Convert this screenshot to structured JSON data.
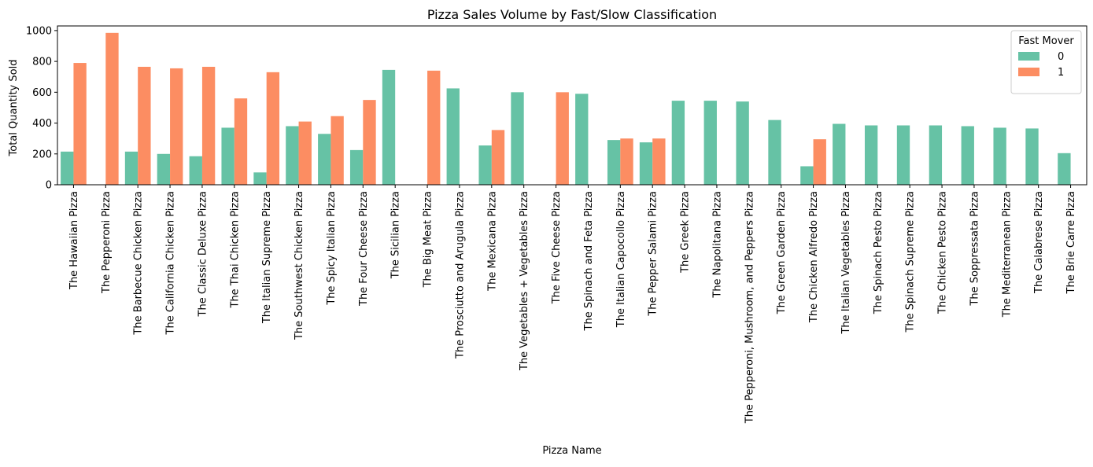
{
  "chart_data": {
    "type": "bar",
    "title": "Pizza Sales Volume by Fast/Slow Classification",
    "xlabel": "Pizza Name",
    "ylabel": "Total Quantity Sold",
    "ylim": [
      0,
      1030
    ],
    "yticks": [
      0,
      200,
      400,
      600,
      800,
      1000
    ],
    "grid": false,
    "legend": {
      "title": "Fast Mover",
      "placement": "top-right"
    },
    "categories": [
      "The Hawaiian Pizza",
      "The Pepperoni Pizza",
      "The Barbecue Chicken Pizza",
      "The California Chicken Pizza",
      "The Classic Deluxe Pizza",
      "The Thai Chicken Pizza",
      "The Italian Supreme Pizza",
      "The Southwest Chicken Pizza",
      "The Spicy Italian Pizza",
      "The Four Cheese Pizza",
      "The Sicilian Pizza",
      "The Big Meat Pizza",
      "The Prosciutto and Arugula Pizza",
      "The Mexicana Pizza",
      "The Vegetables + Vegetables Pizza",
      "The Five Cheese Pizza",
      "The Spinach and Feta Pizza",
      "The Italian Capocollo Pizza",
      "The Pepper Salami Pizza",
      "The Greek Pizza",
      "The Napolitana Pizza",
      "The Pepperoni, Mushroom, and Peppers Pizza",
      "The Green Garden Pizza",
      "The Chicken Alfredo Pizza",
      "The Italian Vegetables Pizza",
      "The Spinach Pesto Pizza",
      "The Spinach Supreme Pizza",
      "The Chicken Pesto Pizza",
      "The Soppressata Pizza",
      "The Mediterranean Pizza",
      "The Calabrese Pizza",
      "The Brie Carre Pizza"
    ],
    "series": [
      {
        "name": "0",
        "color": "#66c2a5",
        "values": [
          215,
          null,
          215,
          200,
          185,
          370,
          80,
          380,
          330,
          225,
          745,
          null,
          625,
          255,
          600,
          null,
          590,
          290,
          275,
          545,
          545,
          540,
          420,
          120,
          395,
          385,
          385,
          385,
          380,
          370,
          365,
          205
        ]
      },
      {
        "name": "1",
        "color": "#fc8d62",
        "values": [
          790,
          985,
          765,
          755,
          765,
          560,
          730,
          410,
          445,
          550,
          null,
          740,
          null,
          355,
          null,
          600,
          null,
          300,
          300,
          null,
          null,
          null,
          null,
          295,
          null,
          null,
          null,
          null,
          null,
          null,
          null,
          null
        ]
      }
    ]
  }
}
